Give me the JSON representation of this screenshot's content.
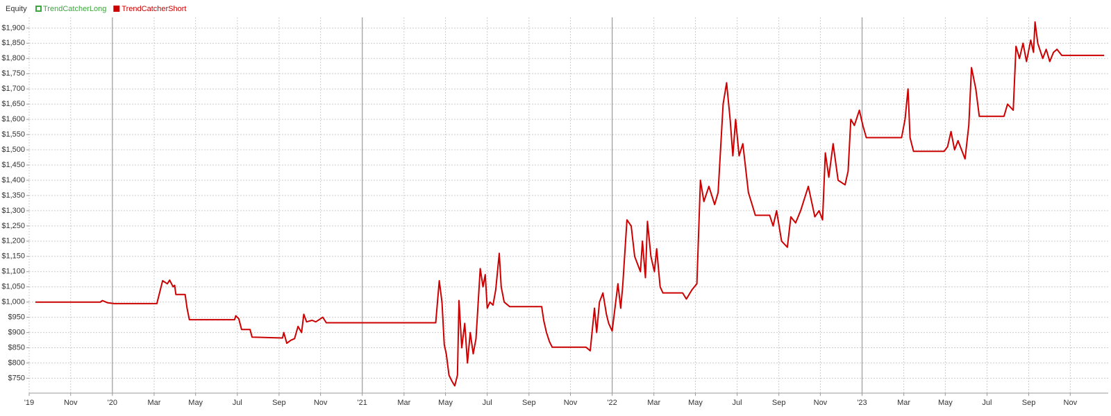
{
  "chart_data": {
    "type": "line",
    "legend_title": "Equity",
    "hidden_series": [
      {
        "name": "TrendCatcherLong",
        "color": "#3aa83a"
      }
    ],
    "x": [
      2019.692,
      2019.952,
      2019.96,
      2019.98,
      2020.008,
      2020.178,
      2020.201,
      2020.22,
      2020.229,
      2020.243,
      2020.249,
      2020.254,
      2020.291,
      2020.299,
      2020.308,
      2020.489,
      2020.494,
      2020.506,
      2020.517,
      2020.551,
      2020.559,
      2020.681,
      2020.686,
      2020.698,
      2020.715,
      2020.729,
      2020.743,
      2020.757,
      2020.766,
      2020.777,
      2020.799,
      2020.814,
      2020.842,
      2020.856,
      2021.294,
      2021.308,
      2021.319,
      2021.328,
      2021.336,
      2021.347,
      2021.359,
      2021.37,
      2021.381,
      2021.387,
      2021.398,
      2021.41,
      2021.421,
      2021.432,
      2021.444,
      2021.455,
      2021.472,
      2021.483,
      2021.492,
      2021.5,
      2021.511,
      2021.523,
      2021.534,
      2021.548,
      2021.556,
      2021.568,
      2021.59,
      2021.718,
      2021.726,
      2021.737,
      2021.749,
      2021.76,
      2021.895,
      2021.912,
      2021.929,
      2021.938,
      2021.949,
      2021.963,
      2021.977,
      2021.986,
      2022.0,
      2022.014,
      2022.023,
      2022.034,
      2022.042,
      2022.059,
      2022.076,
      2022.09,
      2022.113,
      2022.121,
      2022.133,
      2022.141,
      2022.155,
      2022.169,
      2022.178,
      2022.192,
      2022.203,
      2022.282,
      2022.297,
      2022.319,
      2022.339,
      2022.353,
      2022.367,
      2022.387,
      2022.41,
      2022.424,
      2022.444,
      2022.458,
      2022.472,
      2022.483,
      2022.494,
      2022.508,
      2022.523,
      2022.545,
      2022.573,
      2022.63,
      2022.644,
      2022.658,
      2022.678,
      2022.701,
      2022.715,
      2022.734,
      2022.754,
      2022.785,
      2022.811,
      2022.828,
      2022.842,
      2022.853,
      2022.867,
      2022.884,
      2022.904,
      2022.932,
      2022.944,
      2022.955,
      2022.969,
      2022.989,
      2023.003,
      2023.017,
      2023.158,
      2023.172,
      2023.184,
      2023.192,
      2023.206,
      2023.328,
      2023.342,
      2023.356,
      2023.37,
      2023.384,
      2023.412,
      2023.427,
      2023.438,
      2023.455,
      2023.469,
      2023.568,
      2023.582,
      2023.605,
      2023.616,
      2023.63,
      2023.644,
      2023.658,
      2023.675,
      2023.686,
      2023.692,
      2023.703,
      2023.723,
      2023.737,
      2023.751,
      2023.766,
      2023.78,
      2023.799,
      2023.969
    ],
    "series": [
      {
        "name": "TrendCatcherShort",
        "color": "#cc0000",
        "values": [
          1000,
          1000,
          1005,
          998,
          995,
          995,
          1070,
          1060,
          1072,
          1050,
          1055,
          1025,
          1025,
          980,
          942,
          942,
          955,
          945,
          910,
          910,
          885,
          882,
          900,
          865,
          875,
          880,
          920,
          900,
          960,
          935,
          940,
          935,
          950,
          932,
          932,
          1070,
          1000,
          860,
          830,
          760,
          740,
          725,
          760,
          1005,
          850,
          930,
          800,
          900,
          830,
          880,
          1110,
          1050,
          1090,
          980,
          1000,
          990,
          1040,
          1160,
          1050,
          1000,
          985,
          985,
          940,
          900,
          870,
          852,
          852,
          840,
          980,
          900,
          1000,
          1030,
          960,
          930,
          905,
          1000,
          1060,
          980,
          1050,
          1270,
          1250,
          1150,
          1100,
          1200,
          1080,
          1265,
          1150,
          1100,
          1175,
          1050,
          1030,
          1030,
          1010,
          1040,
          1060,
          1400,
          1330,
          1380,
          1320,
          1360,
          1650,
          1720,
          1600,
          1480,
          1600,
          1480,
          1520,
          1360,
          1285,
          1285,
          1250,
          1300,
          1200,
          1180,
          1280,
          1260,
          1300,
          1380,
          1280,
          1300,
          1270,
          1490,
          1410,
          1520,
          1400,
          1385,
          1430,
          1600,
          1580,
          1630,
          1580,
          1540,
          1540,
          1600,
          1700,
          1540,
          1495,
          1495,
          1510,
          1560,
          1500,
          1530,
          1470,
          1580,
          1770,
          1700,
          1610,
          1610,
          1650,
          1630,
          1840,
          1800,
          1850,
          1790,
          1860,
          1820,
          1920,
          1850,
          1800,
          1830,
          1790,
          1820,
          1830,
          1810,
          1810
        ]
      }
    ],
    "xlim": [
      2019.667,
      2023.985
    ],
    "xticks": [
      {
        "value": 2019.667,
        "label": "'19"
      },
      {
        "value": 2019.833,
        "label": "Nov"
      },
      {
        "value": 2020,
        "label": "'20"
      },
      {
        "value": 2020.167,
        "label": "Mar"
      },
      {
        "value": 2020.333,
        "label": "May"
      },
      {
        "value": 2020.5,
        "label": "Jul"
      },
      {
        "value": 2020.667,
        "label": "Sep"
      },
      {
        "value": 2020.833,
        "label": "Nov"
      },
      {
        "value": 2021,
        "label": "'21"
      },
      {
        "value": 2021.167,
        "label": "Mar"
      },
      {
        "value": 2021.333,
        "label": "May"
      },
      {
        "value": 2021.5,
        "label": "Jul"
      },
      {
        "value": 2021.667,
        "label": "Sep"
      },
      {
        "value": 2021.833,
        "label": "Nov"
      },
      {
        "value": 2022,
        "label": "'22"
      },
      {
        "value": 2022.167,
        "label": "Mar"
      },
      {
        "value": 2022.333,
        "label": "May"
      },
      {
        "value": 2022.5,
        "label": "Jul"
      },
      {
        "value": 2022.667,
        "label": "Sep"
      },
      {
        "value": 2022.833,
        "label": "Nov"
      },
      {
        "value": 2023,
        "label": "'23"
      },
      {
        "value": 2023.167,
        "label": "Mar"
      },
      {
        "value": 2023.333,
        "label": "May"
      },
      {
        "value": 2023.5,
        "label": "Jul"
      },
      {
        "value": 2023.667,
        "label": "Sep"
      },
      {
        "value": 2023.833,
        "label": "Nov"
      }
    ],
    "ylim": [
      701,
      1935
    ],
    "yticks": [
      {
        "value": 750,
        "label": "$750"
      },
      {
        "value": 800,
        "label": "$800"
      },
      {
        "value": 850,
        "label": "$850"
      },
      {
        "value": 900,
        "label": "$900"
      },
      {
        "value": 950,
        "label": "$950"
      },
      {
        "value": 1000,
        "label": "$1,000"
      },
      {
        "value": 1050,
        "label": "$1,050"
      },
      {
        "value": 1100,
        "label": "$1,100"
      },
      {
        "value": 1150,
        "label": "$1,150"
      },
      {
        "value": 1200,
        "label": "$1,200"
      },
      {
        "value": 1250,
        "label": "$1,250"
      },
      {
        "value": 1300,
        "label": "$1,300"
      },
      {
        "value": 1350,
        "label": "$1,350"
      },
      {
        "value": 1400,
        "label": "$1,400"
      },
      {
        "value": 1450,
        "label": "$1,450"
      },
      {
        "value": 1500,
        "label": "$1,500"
      },
      {
        "value": 1550,
        "label": "$1,550"
      },
      {
        "value": 1600,
        "label": "$1,600"
      },
      {
        "value": 1650,
        "label": "$1,650"
      },
      {
        "value": 1700,
        "label": "$1,700"
      },
      {
        "value": 1750,
        "label": "$1,750"
      },
      {
        "value": 1800,
        "label": "$1,800"
      },
      {
        "value": 1850,
        "label": "$1,850"
      },
      {
        "value": 1900,
        "label": "$1,900"
      }
    ],
    "grid": true
  }
}
